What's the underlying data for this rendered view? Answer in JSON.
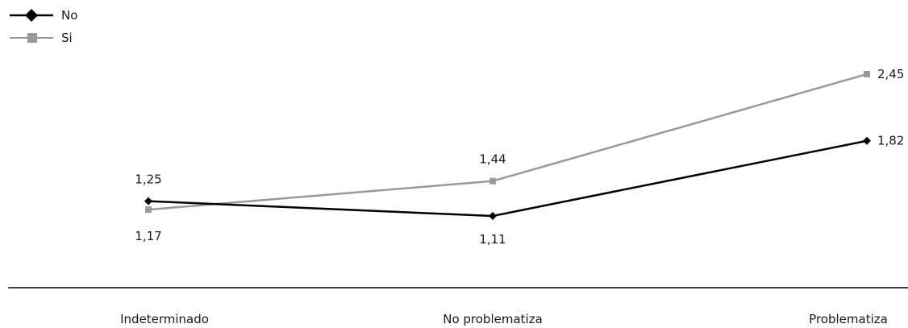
{
  "chart_data": {
    "type": "line",
    "categories": [
      "Indeterminado",
      "No problematiza",
      "Problematiza"
    ],
    "series": [
      {
        "name": "No",
        "values": [
          1.25,
          1.11,
          1.82
        ],
        "labels": [
          "1,25",
          "1,11",
          "1,82"
        ],
        "color": "#000000",
        "marker": "diamond"
      },
      {
        "name": "Si",
        "values": [
          1.17,
          1.44,
          2.45
        ],
        "labels": [
          "1,17",
          "1,44",
          "2,45"
        ],
        "color": "#999999",
        "marker": "square"
      }
    ],
    "legend": "top-left",
    "grid": false
  }
}
